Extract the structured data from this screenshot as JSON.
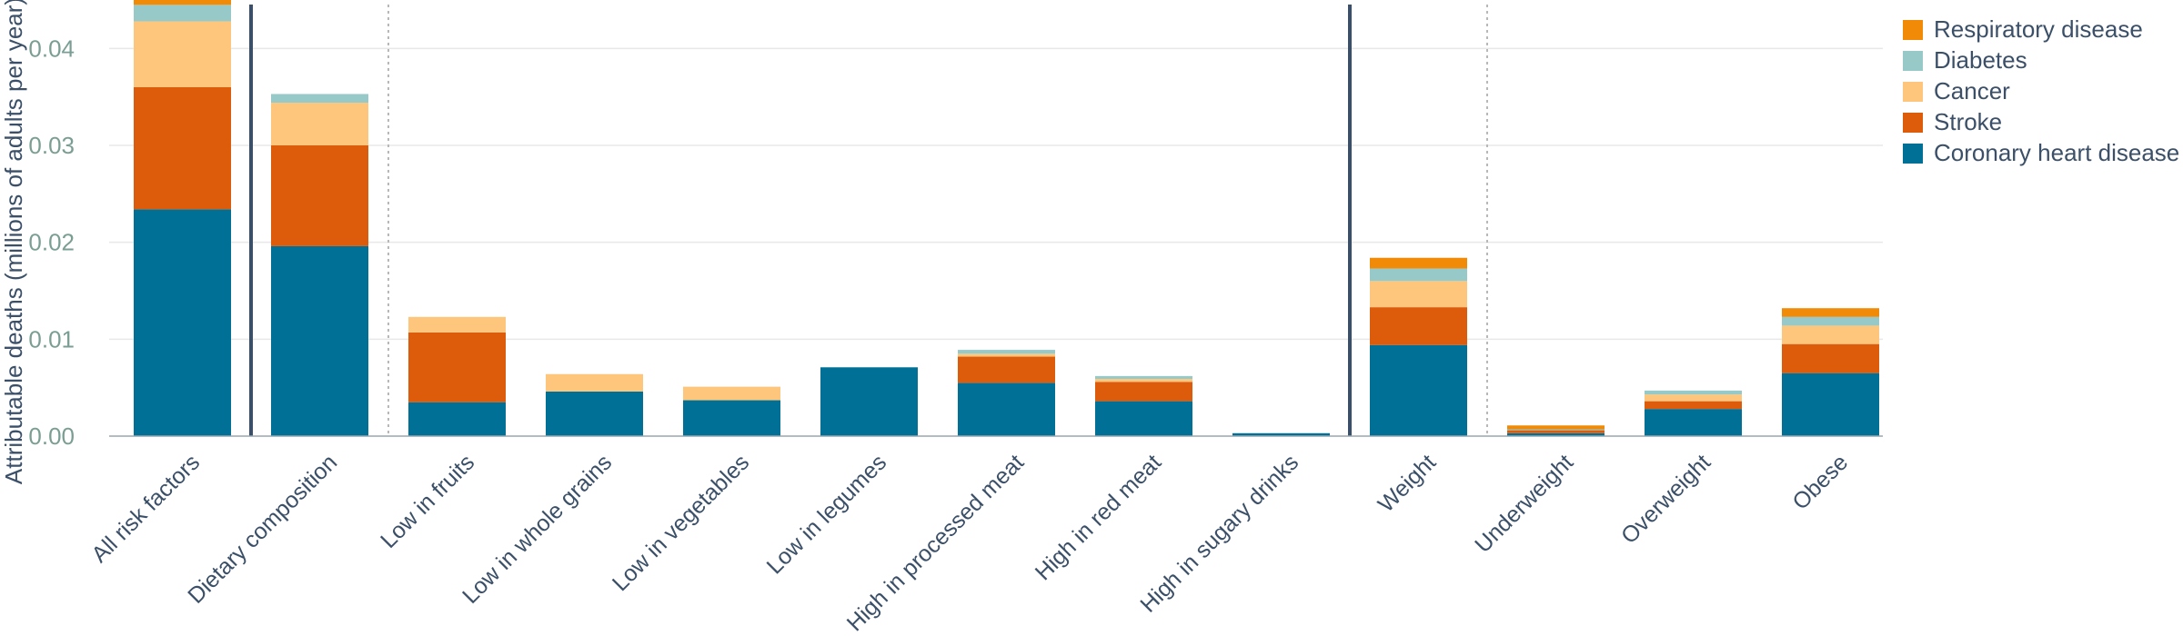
{
  "chart_data": {
    "type": "bar",
    "stacked": true,
    "ylabel": "Attributable deaths (millions of adults per year)",
    "xlabel": "",
    "ylim": [
      0,
      0.045
    ],
    "yticks": [
      "0.00",
      "0.01",
      "0.02",
      "0.03",
      "0.04"
    ],
    "ytick_values": [
      0,
      0.01,
      0.02,
      0.03,
      0.04
    ],
    "grid": true,
    "legend_position": "top-right",
    "categories": [
      "All risk factors",
      "Dietary composition",
      "Low in fruits",
      "Low in whole grains",
      "Low in vegetables",
      "Low in legumes",
      "High in processed meat",
      "High in red meat",
      "High in sugary drinks",
      "Weight",
      "Underweight",
      "Overweight",
      "Obese"
    ],
    "separators": [
      {
        "after_index": 0,
        "style": "solid"
      },
      {
        "after_index": 1,
        "style": "dotted"
      },
      {
        "after_index": 8,
        "style": "solid"
      },
      {
        "after_index": 9,
        "style": "dotted"
      }
    ],
    "series": [
      {
        "name": "Coronary heart disease",
        "color": "#007096",
        "values": [
          0.0234,
          0.0196,
          0.0035,
          0.0046,
          0.0037,
          0.0071,
          0.0055,
          0.0036,
          0.0003,
          0.0094,
          0.0003,
          0.0028,
          0.0065
        ]
      },
      {
        "name": "Stroke",
        "color": "#dd5c0c",
        "values": [
          0.0126,
          0.0104,
          0.0072,
          0.0,
          0.0,
          0.0,
          0.0027,
          0.002,
          0.0,
          0.0039,
          0.0003,
          0.0008,
          0.003
        ]
      },
      {
        "name": "Cancer",
        "color": "#fdc67c",
        "values": [
          0.0068,
          0.0044,
          0.0016,
          0.0018,
          0.0014,
          0.0,
          0.0003,
          0.0003,
          0.0,
          0.0027,
          0.0,
          0.0007,
          0.0019
        ]
      },
      {
        "name": "Diabetes",
        "color": "#96c9c8",
        "values": [
          0.0017,
          0.0009,
          0.0,
          0.0,
          0.0,
          0.0,
          0.0004,
          0.0003,
          0.0,
          0.0013,
          0.0001,
          0.0004,
          0.0009
        ]
      },
      {
        "name": "Respiratory disease",
        "color": "#f18a07",
        "values": [
          0.0011,
          0.0,
          0.0,
          0.0,
          0.0,
          0.0,
          0.0,
          0.0,
          0.0,
          0.0011,
          0.0004,
          0.0,
          0.0009
        ]
      }
    ]
  }
}
